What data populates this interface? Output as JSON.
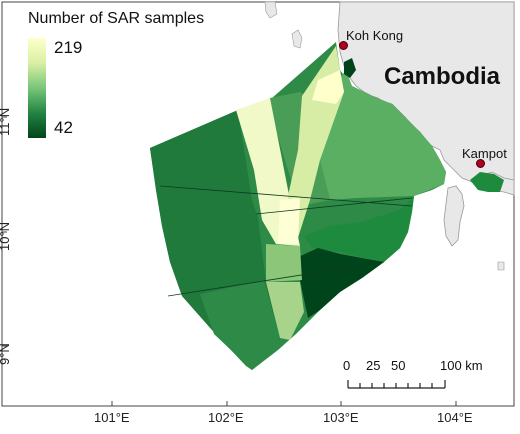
{
  "legend": {
    "title": "Number of SAR samples",
    "max_label": "219",
    "min_label": "42",
    "color_high": "#ffffcc",
    "color_low": "#00441b"
  },
  "map": {
    "country_label": "Cambodia",
    "cities": [
      {
        "name": "Koh Kong"
      },
      {
        "name": "Kampot"
      }
    ],
    "land_color": "#ececec",
    "sea_color": "#ffffff"
  },
  "scalebar": {
    "labels": [
      "0",
      "25",
      "50",
      "100 km"
    ]
  },
  "axes": {
    "x_ticks": [
      "101°E",
      "102°E",
      "103°E",
      "104°E"
    ],
    "y_ticks": [
      "11°N",
      "10°N",
      "9°N"
    ]
  }
}
